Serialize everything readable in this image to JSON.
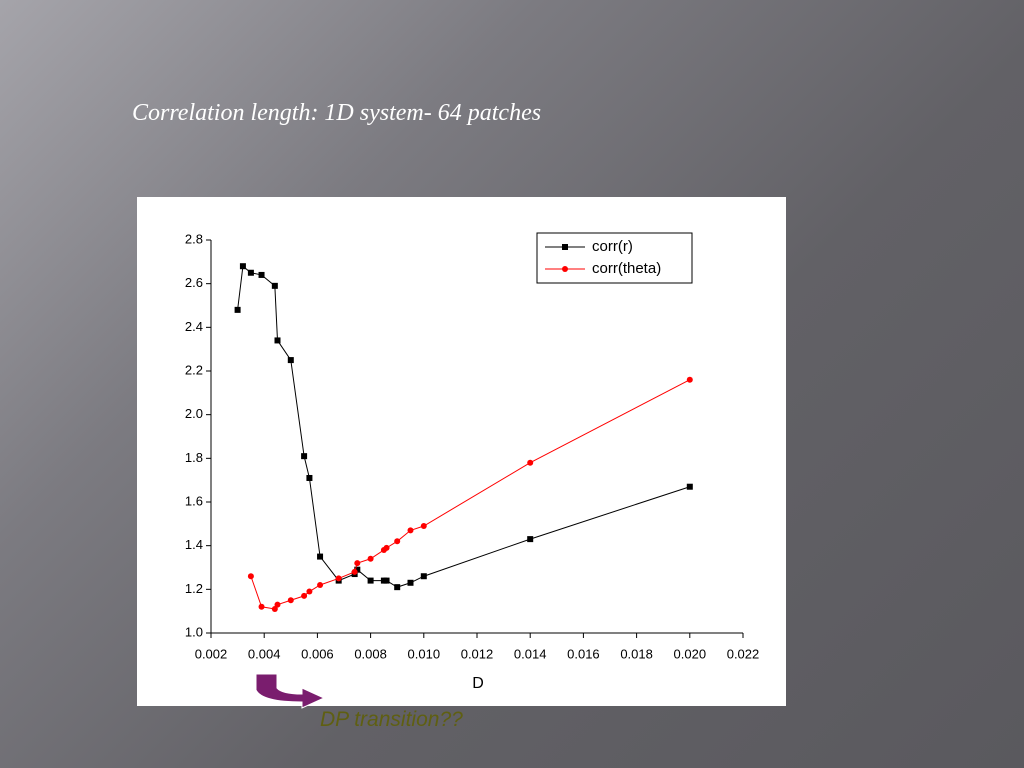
{
  "title": "Correlation length: 1D system- 64 patches",
  "annotation": "DP transition??",
  "chart_data": {
    "type": "line",
    "xlabel": "D",
    "xlim": [
      0.002,
      0.022
    ],
    "xticks": [
      {
        "value": 0.002,
        "label": "0.002"
      },
      {
        "value": 0.004,
        "label": "0.004"
      },
      {
        "value": 0.006,
        "label": "0.006"
      },
      {
        "value": 0.008,
        "label": "0.008"
      },
      {
        "value": 0.01,
        "label": "0.010"
      },
      {
        "value": 0.012,
        "label": "0.012"
      },
      {
        "value": 0.014,
        "label": "0.014"
      },
      {
        "value": 0.016,
        "label": "0.016"
      },
      {
        "value": 0.018,
        "label": "0.018"
      },
      {
        "value": 0.02,
        "label": "0.020"
      },
      {
        "value": 0.022,
        "label": "0.022"
      }
    ],
    "ylim": [
      1.0,
      2.8
    ],
    "yticks": [
      {
        "value": 1.0,
        "label": "1.0"
      },
      1.2,
      1.4,
      1.6,
      1.8,
      {
        "value": 2.0,
        "label": "2.0"
      },
      2.2,
      2.4,
      2.6,
      2.8
    ],
    "legend": "upper right",
    "series": [
      {
        "name": "corr(r)",
        "color": "#000000",
        "marker": "square",
        "x": [
          0.003,
          0.0032,
          0.0035,
          0.0039,
          0.0044,
          0.0045,
          0.005,
          0.0055,
          0.0057,
          0.0061,
          0.0068,
          0.0074,
          0.0075,
          0.008,
          0.0085,
          0.0086,
          0.009,
          0.0095,
          0.01,
          0.014,
          0.02
        ],
        "values": [
          2.48,
          2.68,
          2.65,
          2.64,
          2.59,
          2.34,
          2.25,
          1.81,
          1.71,
          1.35,
          1.24,
          1.27,
          1.29,
          1.24,
          1.24,
          1.24,
          1.21,
          1.23,
          1.26,
          1.43,
          1.67
        ]
      },
      {
        "name": "corr(theta)",
        "color": "#ff0000",
        "marker": "circle",
        "x": [
          0.0035,
          0.0039,
          0.0044,
          0.0045,
          0.005,
          0.0055,
          0.0057,
          0.0061,
          0.0068,
          0.0074,
          0.0075,
          0.008,
          0.0085,
          0.0086,
          0.009,
          0.0095,
          0.01,
          0.014,
          0.02
        ],
        "values": [
          1.26,
          1.12,
          1.11,
          1.13,
          1.15,
          1.17,
          1.19,
          1.22,
          1.25,
          1.28,
          1.32,
          1.34,
          1.38,
          1.39,
          1.42,
          1.47,
          1.49,
          1.78,
          2.16
        ]
      }
    ]
  }
}
